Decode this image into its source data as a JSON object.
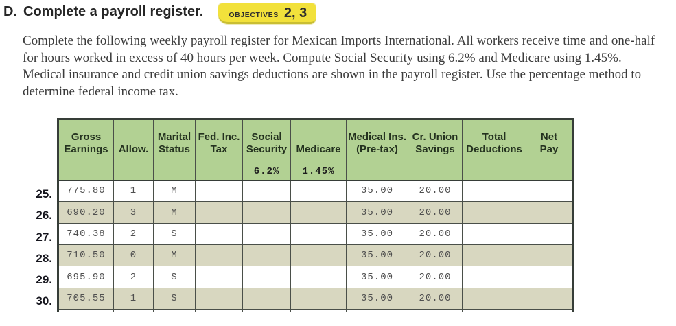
{
  "header": {
    "section_letter": "D.",
    "title": "Complete a payroll register.",
    "badge": {
      "label": "OBJECTIVES",
      "numbers": "2, 3"
    }
  },
  "instructions": "Complete the following weekly payroll register for Mexican Imports International. All workers receive time and one-half for hours worked in excess of 40 hours per week. Compute Social Security using 6.2% and Medicare using 1.45%. Medical insurance and credit union savings deductions are shown in the payroll register. Use the percentage method to determine federal income tax.",
  "table": {
    "column_keys": [
      "gross-earnings",
      "allow",
      "marital-status",
      "fed-inc-tax",
      "social-security",
      "medicare",
      "medical-ins",
      "cr-union-savings",
      "total-deductions",
      "net-pay"
    ],
    "column_labels": [
      "Gross\nEarnings",
      "Allow.",
      "Marital\nStatus",
      "Fed. Inc.\nTax",
      "Social\nSecurity",
      "Medicare",
      "Medical Ins.\n(Pre-tax)",
      "Cr. Union\nSavings",
      "Total\nDeductions",
      "Net\nPay"
    ],
    "rate_row": [
      "",
      "",
      "",
      "",
      "6.2%",
      "1.45%",
      "",
      "",
      "",
      ""
    ],
    "rows": [
      {
        "number": "25.",
        "cells": [
          "775.80",
          "1",
          "M",
          "",
          "",
          "",
          "35.00",
          "20.00",
          "",
          ""
        ]
      },
      {
        "number": "26.",
        "cells": [
          "690.20",
          "3",
          "M",
          "",
          "",
          "",
          "35.00",
          "20.00",
          "",
          ""
        ]
      },
      {
        "number": "27.",
        "cells": [
          "740.38",
          "2",
          "S",
          "",
          "",
          "",
          "35.00",
          "20.00",
          "",
          ""
        ]
      },
      {
        "number": "28.",
        "cells": [
          "710.50",
          "0",
          "M",
          "",
          "",
          "",
          "35.00",
          "20.00",
          "",
          ""
        ]
      },
      {
        "number": "29.",
        "cells": [
          "695.90",
          "2",
          "S",
          "",
          "",
          "",
          "35.00",
          "20.00",
          "",
          ""
        ]
      },
      {
        "number": "30.",
        "cells": [
          "705.55",
          "1",
          "S",
          "",
          "",
          "",
          "35.00",
          "20.00",
          "",
          ""
        ]
      }
    ]
  },
  "colors": {
    "badge_yellow": "#f2e13b",
    "badge_shadow": "#c9be33",
    "header_green": "#b2d193",
    "stripe_tan": "#d8d7c0",
    "grid_line": "#4a4f49",
    "thick_border": "#363d38"
  }
}
